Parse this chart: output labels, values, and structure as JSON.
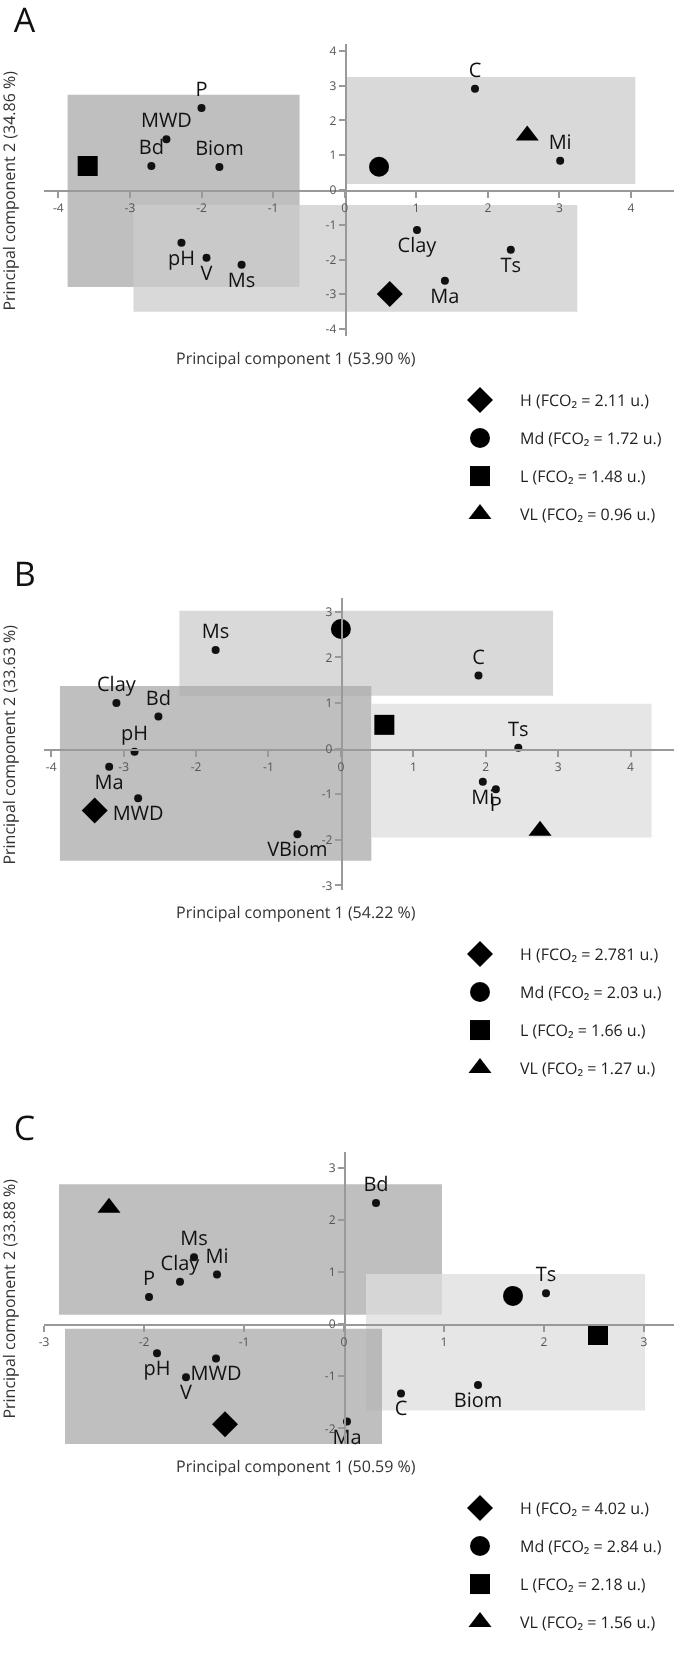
{
  "chart_data": [
    {
      "type": "scatter",
      "title": "A",
      "xlabel": "Principal component 1 (53.90 %)",
      "ylabel": "Principal component 2 (34.86 %)",
      "xlim": [
        -4.2,
        4.6
      ],
      "ylim": [
        -4.2,
        4.2
      ],
      "xticks": [
        -4,
        -3,
        -2,
        -1,
        0,
        1,
        2,
        3,
        4
      ],
      "yticks": [
        -4,
        -3,
        -2,
        -1,
        0,
        1,
        2,
        3,
        4
      ],
      "grid": false,
      "legend": "bottom right",
      "series": [
        {
          "marker": "circle",
          "color": "#111111",
          "x": [
            -2.0,
            -2.49,
            -2.7,
            -1.75,
            1.82,
            3.01,
            1.01,
            2.32,
            1.4,
            -2.28,
            -1.93,
            -1.44
          ],
          "values": [
            2.36,
            1.46,
            0.69,
            0.66,
            2.91,
            0.84,
            -1.15,
            -1.72,
            -2.61,
            -1.52,
            -1.95,
            -2.15
          ],
          "value_labels": [
            "P",
            "MWD",
            "Bd",
            "Biom",
            "C",
            "Mi",
            "Clay",
            "Ts",
            "Ma",
            "pH",
            "V",
            "Ms"
          ]
        },
        {
          "name": "H (FCO₂ = 2.11 u.)",
          "color": "#000000",
          "marker": "diamond",
          "x": [
            0.63
          ],
          "values": [
            -2.99
          ]
        },
        {
          "name": "Md (FCO₂ = 1.72 u.)",
          "color": "#000000",
          "marker": "circle",
          "x": [
            0.48
          ],
          "values": [
            0.67
          ]
        },
        {
          "name": "L (FCO₂ = 1.48 u.)",
          "color": "#000000",
          "marker": "square",
          "x": [
            -3.59
          ],
          "values": [
            0.69
          ]
        },
        {
          "name": "VL (FCO₂ = 0.96 u.)",
          "color": "#000000",
          "marker": "triangle",
          "x": [
            2.55
          ],
          "values": [
            1.57
          ]
        }
      ]
    },
    {
      "type": "scatter",
      "title": "B",
      "xlabel": "Principal component 1 (54.22 %)",
      "ylabel": "Principal component 2 (33.63 %)",
      "xlim": [
        -4.1,
        4.6
      ],
      "ylim": [
        -3.1,
        3.3
      ],
      "xticks": [
        -4,
        -3,
        -2,
        -1,
        0,
        1,
        2,
        3,
        4
      ],
      "yticks": [
        -3,
        -2,
        -1,
        0,
        1,
        2,
        3
      ],
      "grid": false,
      "legend": "bottom right",
      "series": [
        {
          "marker": "circle",
          "color": "#111111",
          "x": [
            -1.73,
            1.9,
            -3.1,
            -2.52,
            -2.85,
            -3.2,
            -2.8,
            2.45,
            1.96,
            2.14,
            -0.6
          ],
          "values": [
            2.16,
            1.6,
            1.0,
            0.7,
            -0.07,
            -0.4,
            -1.09,
            0.02,
            -0.73,
            -0.89,
            -1.88
          ],
          "value_labels": [
            "Ms",
            "C",
            "Clay",
            "Bd",
            "pH",
            "Ma",
            "MWD",
            "Ts",
            "Mi",
            "P",
            "VBiom"
          ]
        },
        {
          "name": "H (FCO₂ = 2.781 u.)",
          "color": "#000000",
          "marker": "diamond",
          "x": [
            -3.4
          ],
          "values": [
            -1.36
          ]
        },
        {
          "name": "Md (FCO₂ = 2.03 u.)",
          "color": "#000000",
          "marker": "circle",
          "x": [
            0.0
          ],
          "values": [
            2.62
          ]
        },
        {
          "name": "L (FCO₂ = 1.66 u.)",
          "color": "#000000",
          "marker": "square",
          "x": [
            0.6
          ],
          "values": [
            0.52
          ]
        },
        {
          "name": "VL (FCO₂ = 1.27 u.)",
          "color": "#000000",
          "marker": "triangle",
          "x": [
            2.75
          ],
          "values": [
            -1.8
          ]
        }
      ]
    },
    {
      "type": "scatter",
      "title": "C",
      "xlabel": "Principal component 1 (50.59 %)",
      "ylabel": "Principal component 2 (33.88 %)",
      "xlim": [
        -3.0,
        3.3
      ],
      "ylim": [
        -2.3,
        3.3
      ],
      "xticks": [
        -3,
        -2,
        -1,
        0,
        1,
        2,
        3
      ],
      "yticks": [
        -2,
        -1,
        0,
        1,
        2,
        3
      ],
      "grid": false,
      "legend": "bottom right",
      "series": [
        {
          "marker": "circle",
          "color": "#111111",
          "x": [
            0.32,
            -1.5,
            -1.27,
            -1.64,
            -1.95,
            2.02,
            -1.87,
            -1.28,
            -1.58,
            0.57,
            1.34,
            0.03
          ],
          "values": [
            2.32,
            1.28,
            0.95,
            0.81,
            0.52,
            0.59,
            -0.56,
            -0.66,
            -1.02,
            -1.33,
            -1.17,
            -1.87
          ],
          "value_labels": [
            "Bd",
            "Ms",
            "Mi",
            "Clay",
            "P",
            "Ts",
            "pH",
            "MWD",
            "V",
            "C",
            "Biom",
            "Ma"
          ]
        },
        {
          "name": "H (FCO₂ = 4.02 u.)",
          "color": "#000000",
          "marker": "diamond",
          "x": [
            -1.19
          ],
          "values": [
            -1.92
          ]
        },
        {
          "name": "Md (FCO₂ = 2.84 u.)",
          "color": "#000000",
          "marker": "circle",
          "x": [
            1.69
          ],
          "values": [
            0.54
          ]
        },
        {
          "name": "L (FCO₂ = 2.18 u.)",
          "color": "#000000",
          "marker": "square",
          "x": [
            2.54
          ],
          "values": [
            -0.21
          ]
        },
        {
          "name": "VL (FCO₂ = 1.56 u.)",
          "color": "#000000",
          "marker": "triangle",
          "x": [
            -2.35
          ],
          "values": [
            2.23
          ]
        }
      ]
    }
  ]
}
